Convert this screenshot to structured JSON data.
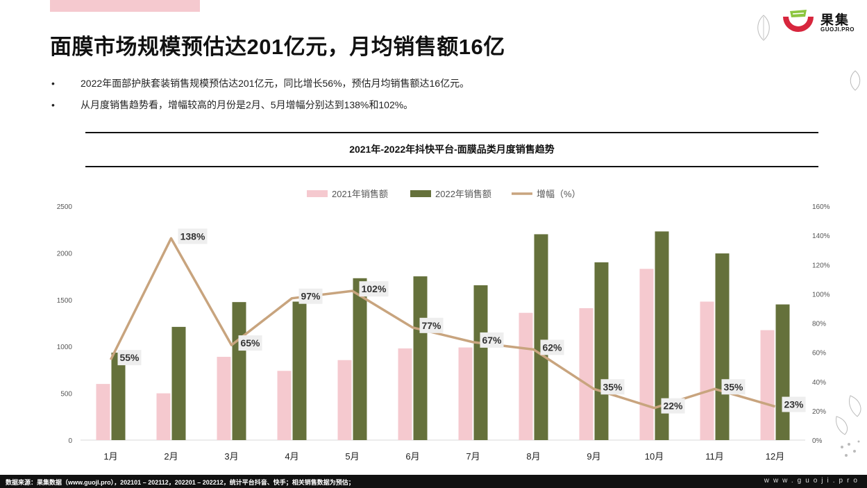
{
  "page": {
    "title": "面膜市场规模预估达201亿元，月均销售额16亿",
    "bullets": [
      "2022年面部护肤套装销售规模预估达201亿元，同比增长56%，预估月均销售额达16亿元。",
      "从月度销售趋势看，增幅较高的月份是2月、5月增幅分别达到138%和102%。"
    ],
    "bullet_mark": "•",
    "logo": {
      "name": "果集",
      "url": "GUOJI.PRO"
    },
    "footer": {
      "source": "数据来源：果集数据（www.guojI.pro），202101 – 202112，202201 – 202212，统计平台抖音、快手；相关销售数据为预估；",
      "url": "www.guoji.pro"
    },
    "watermark": "果集"
  },
  "colors": {
    "series_2021": "#f5c9cf",
    "series_2022": "#65713b",
    "growth_line": "#c8a47e",
    "label_bg": "#eeeeee"
  },
  "chart_data": {
    "type": "bar",
    "title": "2021年-2022年抖快平台-面膜品类月度销售趋势",
    "categories": [
      "1月",
      "2月",
      "3月",
      "4月",
      "5月",
      "6月",
      "7月",
      "8月",
      "9月",
      "10月",
      "11月",
      "12月"
    ],
    "series": [
      {
        "name": "2021年销售额",
        "type": "bar",
        "axis": "left",
        "values": [
          600,
          500,
          890,
          740,
          855,
          980,
          990,
          1360,
          1410,
          1830,
          1480,
          1175
        ]
      },
      {
        "name": "2022年销售额",
        "type": "bar",
        "axis": "left",
        "values": [
          935,
          1210,
          1475,
          1480,
          1730,
          1750,
          1655,
          2200,
          1900,
          2230,
          1995,
          1450
        ]
      },
      {
        "name": "增幅（%）",
        "type": "line",
        "axis": "right",
        "values": [
          55,
          138,
          65,
          97,
          102,
          77,
          67,
          62,
          35,
          22,
          35,
          23
        ],
        "labels": [
          "55%",
          "138%",
          "65%",
          "97%",
          "102%",
          "77%",
          "67%",
          "62%",
          "35%",
          "22%",
          "35%",
          "23%"
        ]
      }
    ],
    "left_axis": {
      "ylim": [
        0,
        2500
      ],
      "ticks": [
        "0",
        "500",
        "1000",
        "1500",
        "2000",
        "2500"
      ]
    },
    "right_axis": {
      "ylim": [
        0,
        160
      ],
      "ticks": [
        "0%",
        "20%",
        "40%",
        "60%",
        "80%",
        "100%",
        "120%",
        "140%",
        "160%"
      ]
    },
    "legend": "top-center",
    "grid": false
  }
}
